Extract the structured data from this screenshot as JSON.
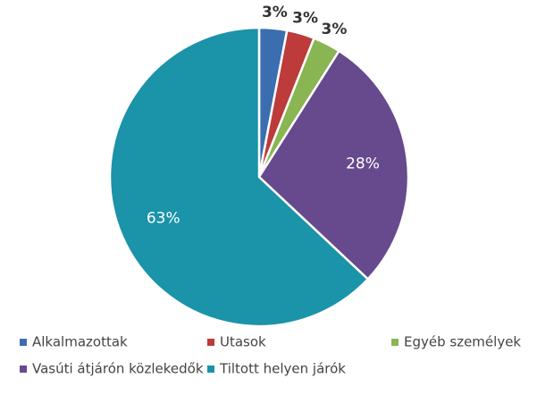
{
  "chart_data": {
    "type": "pie",
    "categories": [
      "Alkalmazottak",
      "Utasok",
      "Egyéb személyek",
      "Vasúti átjárón közlekedők",
      "Tiltott helyen járók"
    ],
    "values": [
      3,
      3,
      3,
      28,
      63
    ],
    "value_labels": [
      "3%",
      "3%",
      "3%",
      "28%",
      "63%"
    ],
    "colors": [
      "#3b6eb0",
      "#bd3b3b",
      "#8ab553",
      "#67498d",
      "#1b93a9"
    ]
  }
}
